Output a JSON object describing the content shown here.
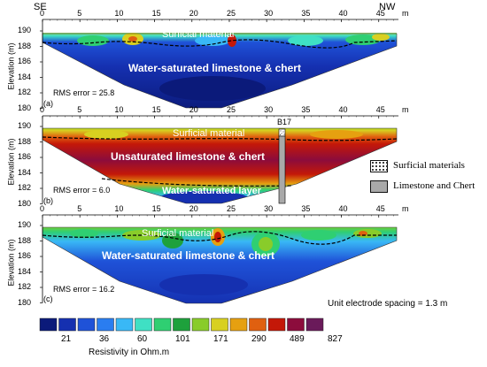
{
  "directions": {
    "left": "SE",
    "right": "NW"
  },
  "x_axis": {
    "unit": "m",
    "ticks": [
      0,
      5,
      10,
      15,
      20,
      25,
      30,
      35,
      40,
      45
    ]
  },
  "y_axis": {
    "label": "Elevation (m)",
    "ticks": [
      190,
      188,
      186,
      184,
      182,
      180
    ]
  },
  "panels": [
    {
      "tag": "(a)",
      "rms": "RMS error = 25.8",
      "labels": {
        "top": "Surficial material",
        "main": "Water-saturated limestone & chert"
      }
    },
    {
      "tag": "(b)",
      "rms": "RMS error = 6.0",
      "borehole": "B17",
      "labels": {
        "top": "Surficial material",
        "main": "Unsaturated limestone & chert",
        "bottom": "Water-saturated layer"
      }
    },
    {
      "tag": "(c)",
      "rms": "RMS error = 16.2",
      "labels": {
        "top": "Surficial material",
        "main": "Water-saturated limestone & chert"
      }
    }
  ],
  "legend": {
    "surficial": "Surficial materials",
    "limestone": "Limestone and Chert"
  },
  "spacing_note": "Unit electrode spacing = 1.3 m",
  "colorbar": {
    "colors": [
      "#0b1a7a",
      "#1530b0",
      "#1f52d8",
      "#2a7df0",
      "#39b8f6",
      "#3fe0c4",
      "#2fcf72",
      "#1ea13c",
      "#89cc2a",
      "#d8d020",
      "#e6a010",
      "#e06010",
      "#c41808",
      "#8c0c3c",
      "#6a1a5a"
    ],
    "labels": [
      "21",
      "36",
      "60",
      "101",
      "171",
      "290",
      "489",
      "827"
    ],
    "title": "Resistivity in Ohm.m"
  }
}
